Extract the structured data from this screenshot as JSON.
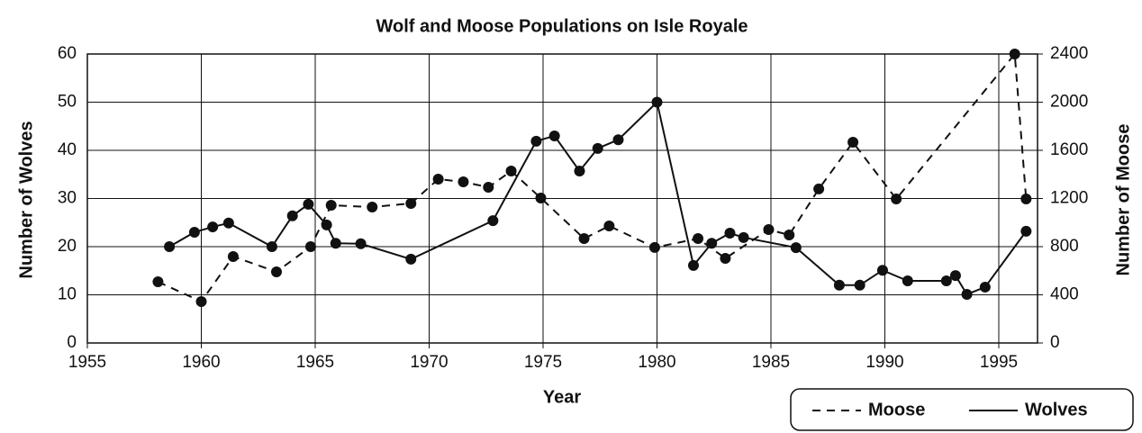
{
  "chart_data": {
    "type": "line",
    "title": "Wolf and Moose Populations on Isle Royale",
    "x_label": "Year",
    "y_label": "Number of Wolves",
    "y2_label": "Number of Moose",
    "xlim": [
      1955,
      1996.7
    ],
    "xticks": [
      1955,
      1960,
      1965,
      1970,
      1975,
      1980,
      1985,
      1990,
      1995
    ],
    "ylim": [
      0,
      60
    ],
    "yticks": [
      0,
      10,
      20,
      30,
      40,
      50,
      60
    ],
    "y2lim": [
      0,
      2400
    ],
    "y2ticks": [
      0,
      400,
      800,
      1200,
      1600,
      2000,
      2400
    ],
    "grid": true,
    "legend": "bottom-right",
    "series": [
      {
        "name": "Moose",
        "color": "#111111",
        "dash": "dashed",
        "axis": "y2",
        "x": [
          1958.1,
          1960.0,
          1961.4,
          1963.3,
          1964.8,
          1965.7,
          1967.5,
          1969.2,
          1970.4,
          1971.5,
          1972.6,
          1973.6,
          1974.9,
          1976.8,
          1977.9,
          1979.9,
          1981.8,
          1983.0,
          1984.9,
          1985.8,
          1987.1,
          1988.6,
          1990.5,
          1995.7,
          1996.2
        ],
        "values": [
          508,
          344,
          718,
          591,
          800,
          1144,
          1129,
          1159,
          1361,
          1338,
          1293,
          1428,
          1204,
          867,
          972,
          793,
          867,
          703,
          942,
          897,
          1279,
          1667,
          1196,
          2400,
          1196
        ]
      },
      {
        "name": "Wolves",
        "color": "#111111",
        "dash": "solid",
        "x": [
          1958.6,
          1959.7,
          1960.5,
          1961.2,
          1963.1,
          1964.0,
          1964.7,
          1965.5,
          1965.9,
          1967.0,
          1969.2,
          1972.8,
          1974.7,
          1975.5,
          1976.6,
          1977.4,
          1978.3,
          1980.0,
          1981.6,
          1982.4,
          1983.2,
          1983.8,
          1986.1,
          1988.0,
          1988.9,
          1989.9,
          1991.0,
          1992.7,
          1993.1,
          1993.6,
          1994.4,
          1996.2
        ],
        "values": [
          20.0,
          23.0,
          24.1,
          24.9,
          20.0,
          26.4,
          28.8,
          24.5,
          20.7,
          20.6,
          17.4,
          25.4,
          41.9,
          43.0,
          35.7,
          40.4,
          42.2,
          50.0,
          16.1,
          20.7,
          22.8,
          21.9,
          19.8,
          12.0,
          12.0,
          15.1,
          12.9,
          12.9,
          14.0,
          10.1,
          11.6,
          23.2
        ]
      }
    ]
  }
}
